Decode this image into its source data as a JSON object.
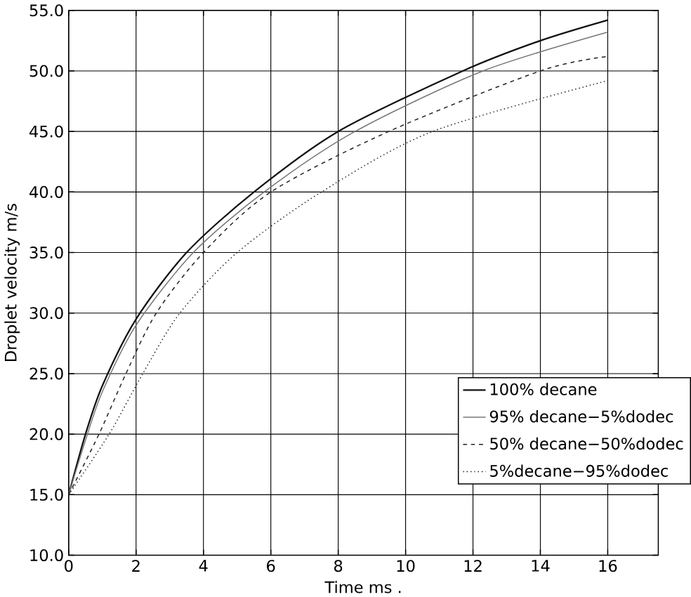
{
  "chart_data": {
    "type": "line",
    "xlabel": "Time ms .",
    "ylabel": "Droplet velocity m/s",
    "xlim": [
      0,
      17.5
    ],
    "ylim": [
      10,
      55
    ],
    "xticks": [
      0,
      2,
      4,
      6,
      8,
      10,
      12,
      14,
      16
    ],
    "yticks": [
      {
        "value": 10,
        "label": "10.0"
      },
      {
        "value": 15,
        "label": "15.0"
      },
      {
        "value": 20,
        "label": "20.0"
      },
      {
        "value": 25,
        "label": "25.0"
      },
      {
        "value": 30,
        "label": "30.0"
      },
      {
        "value": 35,
        "label": "35.0"
      },
      {
        "value": 40,
        "label": "40.0"
      },
      {
        "value": 45,
        "label": "45.0"
      },
      {
        "value": 50,
        "label": "50.0"
      },
      {
        "value": 55,
        "label": "55.0"
      }
    ],
    "grid": true,
    "legend": "right",
    "marker": "none",
    "series": [
      {
        "name": "100% decane",
        "color": "#111111",
        "line_style": "solid",
        "x": [
          0,
          0.5,
          1,
          2,
          3.5,
          5.5,
          8,
          11.7,
          14,
          16
        ],
        "values": [
          15,
          20,
          24,
          29.5,
          35,
          40,
          45,
          50,
          52.5,
          54.2
        ]
      },
      {
        "name": "95% decane−5%dodec",
        "color": "#777777",
        "line_style": "solid",
        "x": [
          0,
          0.5,
          1,
          2,
          3.7,
          5.8,
          8.5,
          12.3,
          16
        ],
        "values": [
          15,
          19.5,
          23.5,
          29,
          35,
          40,
          45,
          50,
          53.2
        ]
      },
      {
        "name": "50% decane−50%dodec",
        "color": "#222222",
        "line_style": "dashed",
        "x": [
          0,
          0.9,
          1.7,
          2.6,
          4,
          6,
          9.5,
          14,
          16
        ],
        "values": [
          15,
          20,
          25,
          30,
          35,
          40,
          45,
          50,
          51.2
        ]
      },
      {
        "name": "5%decane−95%dodec",
        "color": "#222222",
        "line_style": "dotted",
        "x": [
          0,
          1.2,
          2.2,
          3.3,
          5,
          7.5,
          10.8,
          16
        ],
        "values": [
          15,
          20,
          25,
          30,
          35,
          40,
          45,
          49.2
        ]
      }
    ]
  }
}
